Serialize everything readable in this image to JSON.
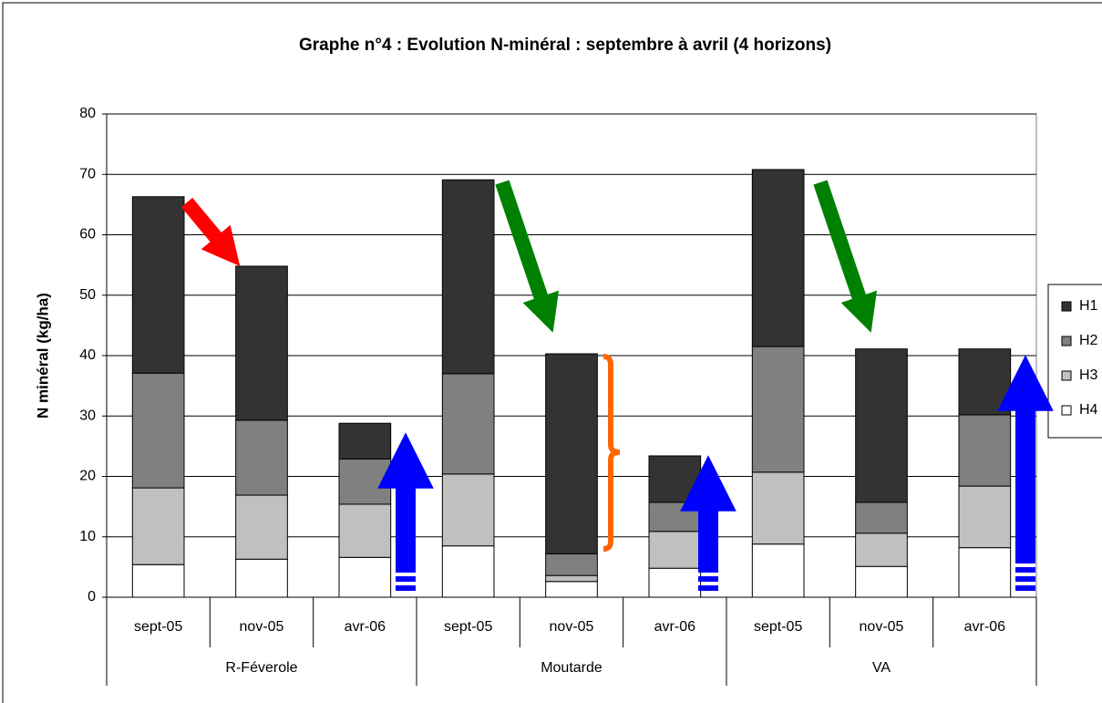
{
  "chart_data": {
    "type": "stacked_bar",
    "title": "Graphe n°4 : Evolution N-minéral : septembre à avril (4 horizons)",
    "y_label": "N minéral (kg/ha)",
    "categories": [
      "sept-05",
      "nov-05",
      "avr-06",
      "sept-05",
      "nov-05",
      "avr-06",
      "sept-05",
      "nov-05",
      "avr-06"
    ],
    "groups": [
      "R-Féverole",
      "Moutarde",
      "VA"
    ],
    "series": [
      {
        "name": "H4",
        "color": "#ffffff",
        "values": [
          5.4,
          6.3,
          6.6,
          8.5,
          2.6,
          4.8,
          8.8,
          5.1,
          8.2
        ]
      },
      {
        "name": "H3",
        "color": "#c0c0c0",
        "values": [
          12.7,
          10.6,
          8.8,
          11.9,
          1.0,
          6.1,
          11.9,
          5.5,
          10.2
        ]
      },
      {
        "name": "H2",
        "color": "#808080",
        "values": [
          19.0,
          12.4,
          7.5,
          16.6,
          3.6,
          4.8,
          20.8,
          5.1,
          11.8
        ]
      },
      {
        "name": "H1",
        "color": "#333333",
        "values": [
          29.2,
          25.5,
          5.9,
          32.1,
          33.1,
          7.7,
          29.3,
          25.4,
          10.9
        ]
      }
    ],
    "ylim": [
      0,
      80
    ],
    "yticks": [
      0,
      10,
      20,
      30,
      40,
      50,
      60,
      70,
      80
    ],
    "grid": true,
    "legend": "right"
  }
}
